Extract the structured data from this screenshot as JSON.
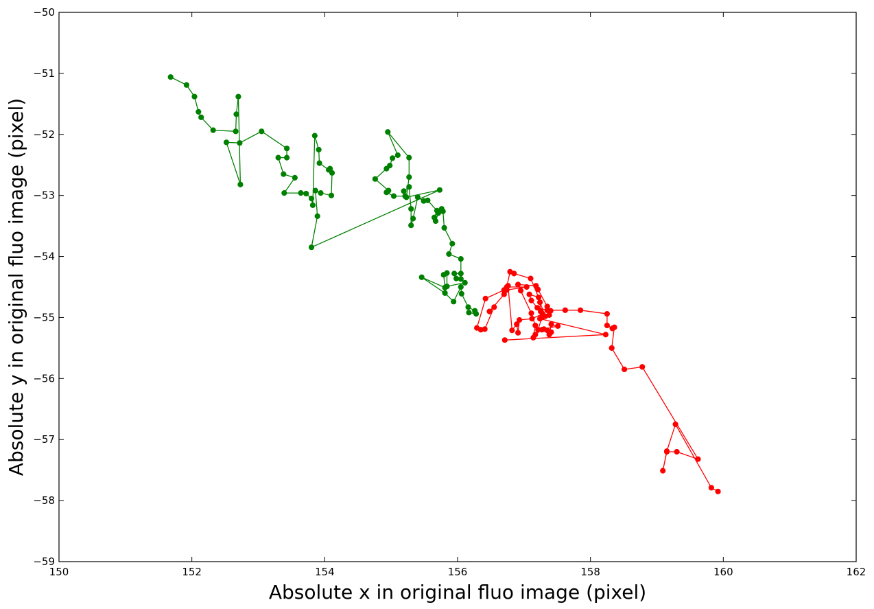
{
  "chart_data": {
    "type": "scatter",
    "title": "",
    "xlabel": "Absolute x in original fluo image (pixel)",
    "ylabel": "Absolute y in original fluo image (pixel)",
    "xlim": [
      150,
      162
    ],
    "ylim": [
      -59,
      -50
    ],
    "xticks": [
      150,
      152,
      154,
      156,
      158,
      160,
      162
    ],
    "yticks": [
      -59,
      -58,
      -57,
      -56,
      -55,
      -54,
      -53,
      -52,
      -51,
      -50
    ],
    "grid": false,
    "series": [
      {
        "color": "#008000",
        "mode": "lines+markers",
        "points": [
          [
            151.68,
            -51.06
          ],
          [
            151.92,
            -51.19
          ],
          [
            152.04,
            -51.38
          ],
          [
            152.1,
            -51.63
          ],
          [
            152.14,
            -51.72
          ],
          [
            152.32,
            -51.93
          ],
          [
            152.66,
            -51.95
          ],
          [
            152.67,
            -51.67
          ],
          [
            152.7,
            -51.38
          ],
          [
            152.73,
            -52.82
          ],
          [
            152.52,
            -52.13
          ],
          [
            152.72,
            -52.14
          ],
          [
            153.05,
            -51.95
          ],
          [
            153.43,
            -52.23
          ],
          [
            153.43,
            -52.38
          ],
          [
            153.3,
            -52.38
          ],
          [
            153.38,
            -52.65
          ],
          [
            153.55,
            -52.71
          ],
          [
            153.39,
            -52.96
          ],
          [
            153.64,
            -52.96
          ],
          [
            153.72,
            -52.97
          ],
          [
            153.8,
            -53.05
          ],
          [
            153.82,
            -53.16
          ],
          [
            153.85,
            -52.02
          ],
          [
            153.91,
            -52.25
          ],
          [
            153.92,
            -52.47
          ],
          [
            154.06,
            -52.58
          ],
          [
            154.08,
            -52.56
          ],
          [
            154.11,
            -52.63
          ],
          [
            154.1,
            -53.0
          ],
          [
            153.94,
            -52.96
          ],
          [
            153.86,
            -52.92
          ],
          [
            153.89,
            -53.34
          ],
          [
            153.8,
            -53.85
          ],
          [
            155.73,
            -52.91
          ],
          [
            155.23,
            -53.03
          ],
          [
            155.27,
            -52.7
          ],
          [
            155.27,
            -52.38
          ],
          [
            154.95,
            -51.96
          ],
          [
            155.1,
            -52.34
          ],
          [
            155.02,
            -52.39
          ],
          [
            154.98,
            -52.51
          ],
          [
            154.93,
            -52.56
          ],
          [
            154.76,
            -52.73
          ],
          [
            154.96,
            -52.92
          ],
          [
            154.93,
            -52.95
          ],
          [
            155.04,
            -53.01
          ],
          [
            155.21,
            -53.01
          ],
          [
            155.19,
            -52.93
          ],
          [
            155.27,
            -52.86
          ],
          [
            155.3,
            -53.22
          ],
          [
            155.3,
            -53.49
          ],
          [
            155.33,
            -53.38
          ],
          [
            155.4,
            -53.03
          ],
          [
            155.49,
            -53.09
          ],
          [
            155.55,
            -53.08
          ],
          [
            155.69,
            -53.25
          ],
          [
            155.65,
            -53.36
          ],
          [
            155.67,
            -53.42
          ],
          [
            155.71,
            -53.29
          ],
          [
            155.76,
            -53.22
          ],
          [
            155.78,
            -53.26
          ],
          [
            155.8,
            -53.53
          ],
          [
            155.92,
            -53.79
          ],
          [
            155.87,
            -53.96
          ],
          [
            156.05,
            -54.04
          ],
          [
            156.05,
            -54.28
          ],
          [
            155.95,
            -54.28
          ],
          [
            155.98,
            -54.36
          ],
          [
            156.05,
            -54.37
          ],
          [
            156.11,
            -54.43
          ],
          [
            155.84,
            -54.49
          ],
          [
            155.84,
            -54.27
          ],
          [
            155.79,
            -54.3
          ],
          [
            155.81,
            -54.51
          ],
          [
            155.46,
            -54.34
          ],
          [
            155.81,
            -54.6
          ],
          [
            155.94,
            -54.74
          ],
          [
            156.05,
            -54.5
          ],
          [
            156.06,
            -54.61
          ],
          [
            156.16,
            -54.83
          ],
          [
            156.26,
            -54.89
          ],
          [
            156.28,
            -54.94
          ],
          [
            156.17,
            -54.92
          ]
        ]
      },
      {
        "color": "#ff0000",
        "mode": "lines+markers",
        "points": [
          [
            159.92,
            -57.85
          ],
          [
            159.82,
            -57.79
          ],
          [
            159.28,
            -56.75
          ],
          [
            159.15,
            -57.19
          ],
          [
            159.09,
            -57.51
          ],
          [
            159.15,
            -57.2
          ],
          [
            159.3,
            -57.2
          ],
          [
            159.62,
            -57.32
          ],
          [
            158.78,
            -55.81
          ],
          [
            158.51,
            -55.85
          ],
          [
            158.32,
            -55.5
          ],
          [
            158.36,
            -55.16
          ],
          [
            158.33,
            -55.18
          ],
          [
            158.25,
            -55.13
          ],
          [
            158.25,
            -54.94
          ],
          [
            157.85,
            -54.88
          ],
          [
            157.62,
            -54.88
          ],
          [
            157.35,
            -54.88
          ],
          [
            157.2,
            -54.84
          ],
          [
            157.11,
            -54.72
          ],
          [
            157.08,
            -54.62
          ],
          [
            157.22,
            -54.67
          ],
          [
            157.1,
            -54.36
          ],
          [
            156.85,
            -54.28
          ],
          [
            156.79,
            -54.25
          ],
          [
            156.74,
            -54.5
          ],
          [
            157.04,
            -54.5
          ],
          [
            156.74,
            -54.55
          ],
          [
            156.7,
            -54.62
          ],
          [
            156.48,
            -54.9
          ],
          [
            156.55,
            -54.83
          ],
          [
            156.41,
            -55.19
          ],
          [
            156.35,
            -55.2
          ],
          [
            156.29,
            -55.17
          ],
          [
            156.42,
            -54.69
          ],
          [
            156.7,
            -54.55
          ],
          [
            156.76,
            -54.48
          ],
          [
            156.82,
            -55.21
          ],
          [
            156.89,
            -55.11
          ],
          [
            156.91,
            -55.25
          ],
          [
            156.93,
            -55.04
          ],
          [
            157.12,
            -55.02
          ],
          [
            157.28,
            -54.94
          ],
          [
            157.25,
            -54.9
          ],
          [
            157.24,
            -54.75
          ],
          [
            157.32,
            -54.98
          ],
          [
            157.38,
            -54.96
          ],
          [
            157.4,
            -54.89
          ],
          [
            157.35,
            -54.82
          ],
          [
            157.21,
            -54.54
          ],
          [
            157.18,
            -54.48
          ],
          [
            156.91,
            -54.46
          ],
          [
            156.95,
            -54.56
          ],
          [
            157.11,
            -54.93
          ],
          [
            157.17,
            -55.13
          ],
          [
            157.14,
            -55.33
          ],
          [
            157.17,
            -55.28
          ],
          [
            157.27,
            -55.2
          ],
          [
            157.35,
            -55.21
          ],
          [
            157.41,
            -55.24
          ],
          [
            157.38,
            -55.28
          ],
          [
            157.41,
            -55.11
          ],
          [
            157.51,
            -55.14
          ],
          [
            157.3,
            -55.19
          ],
          [
            157.21,
            -55.2
          ],
          [
            157.27,
            -55.0
          ],
          [
            157.24,
            -55.02
          ],
          [
            158.23,
            -55.28
          ],
          [
            156.71,
            -55.37
          ]
        ]
      }
    ]
  }
}
